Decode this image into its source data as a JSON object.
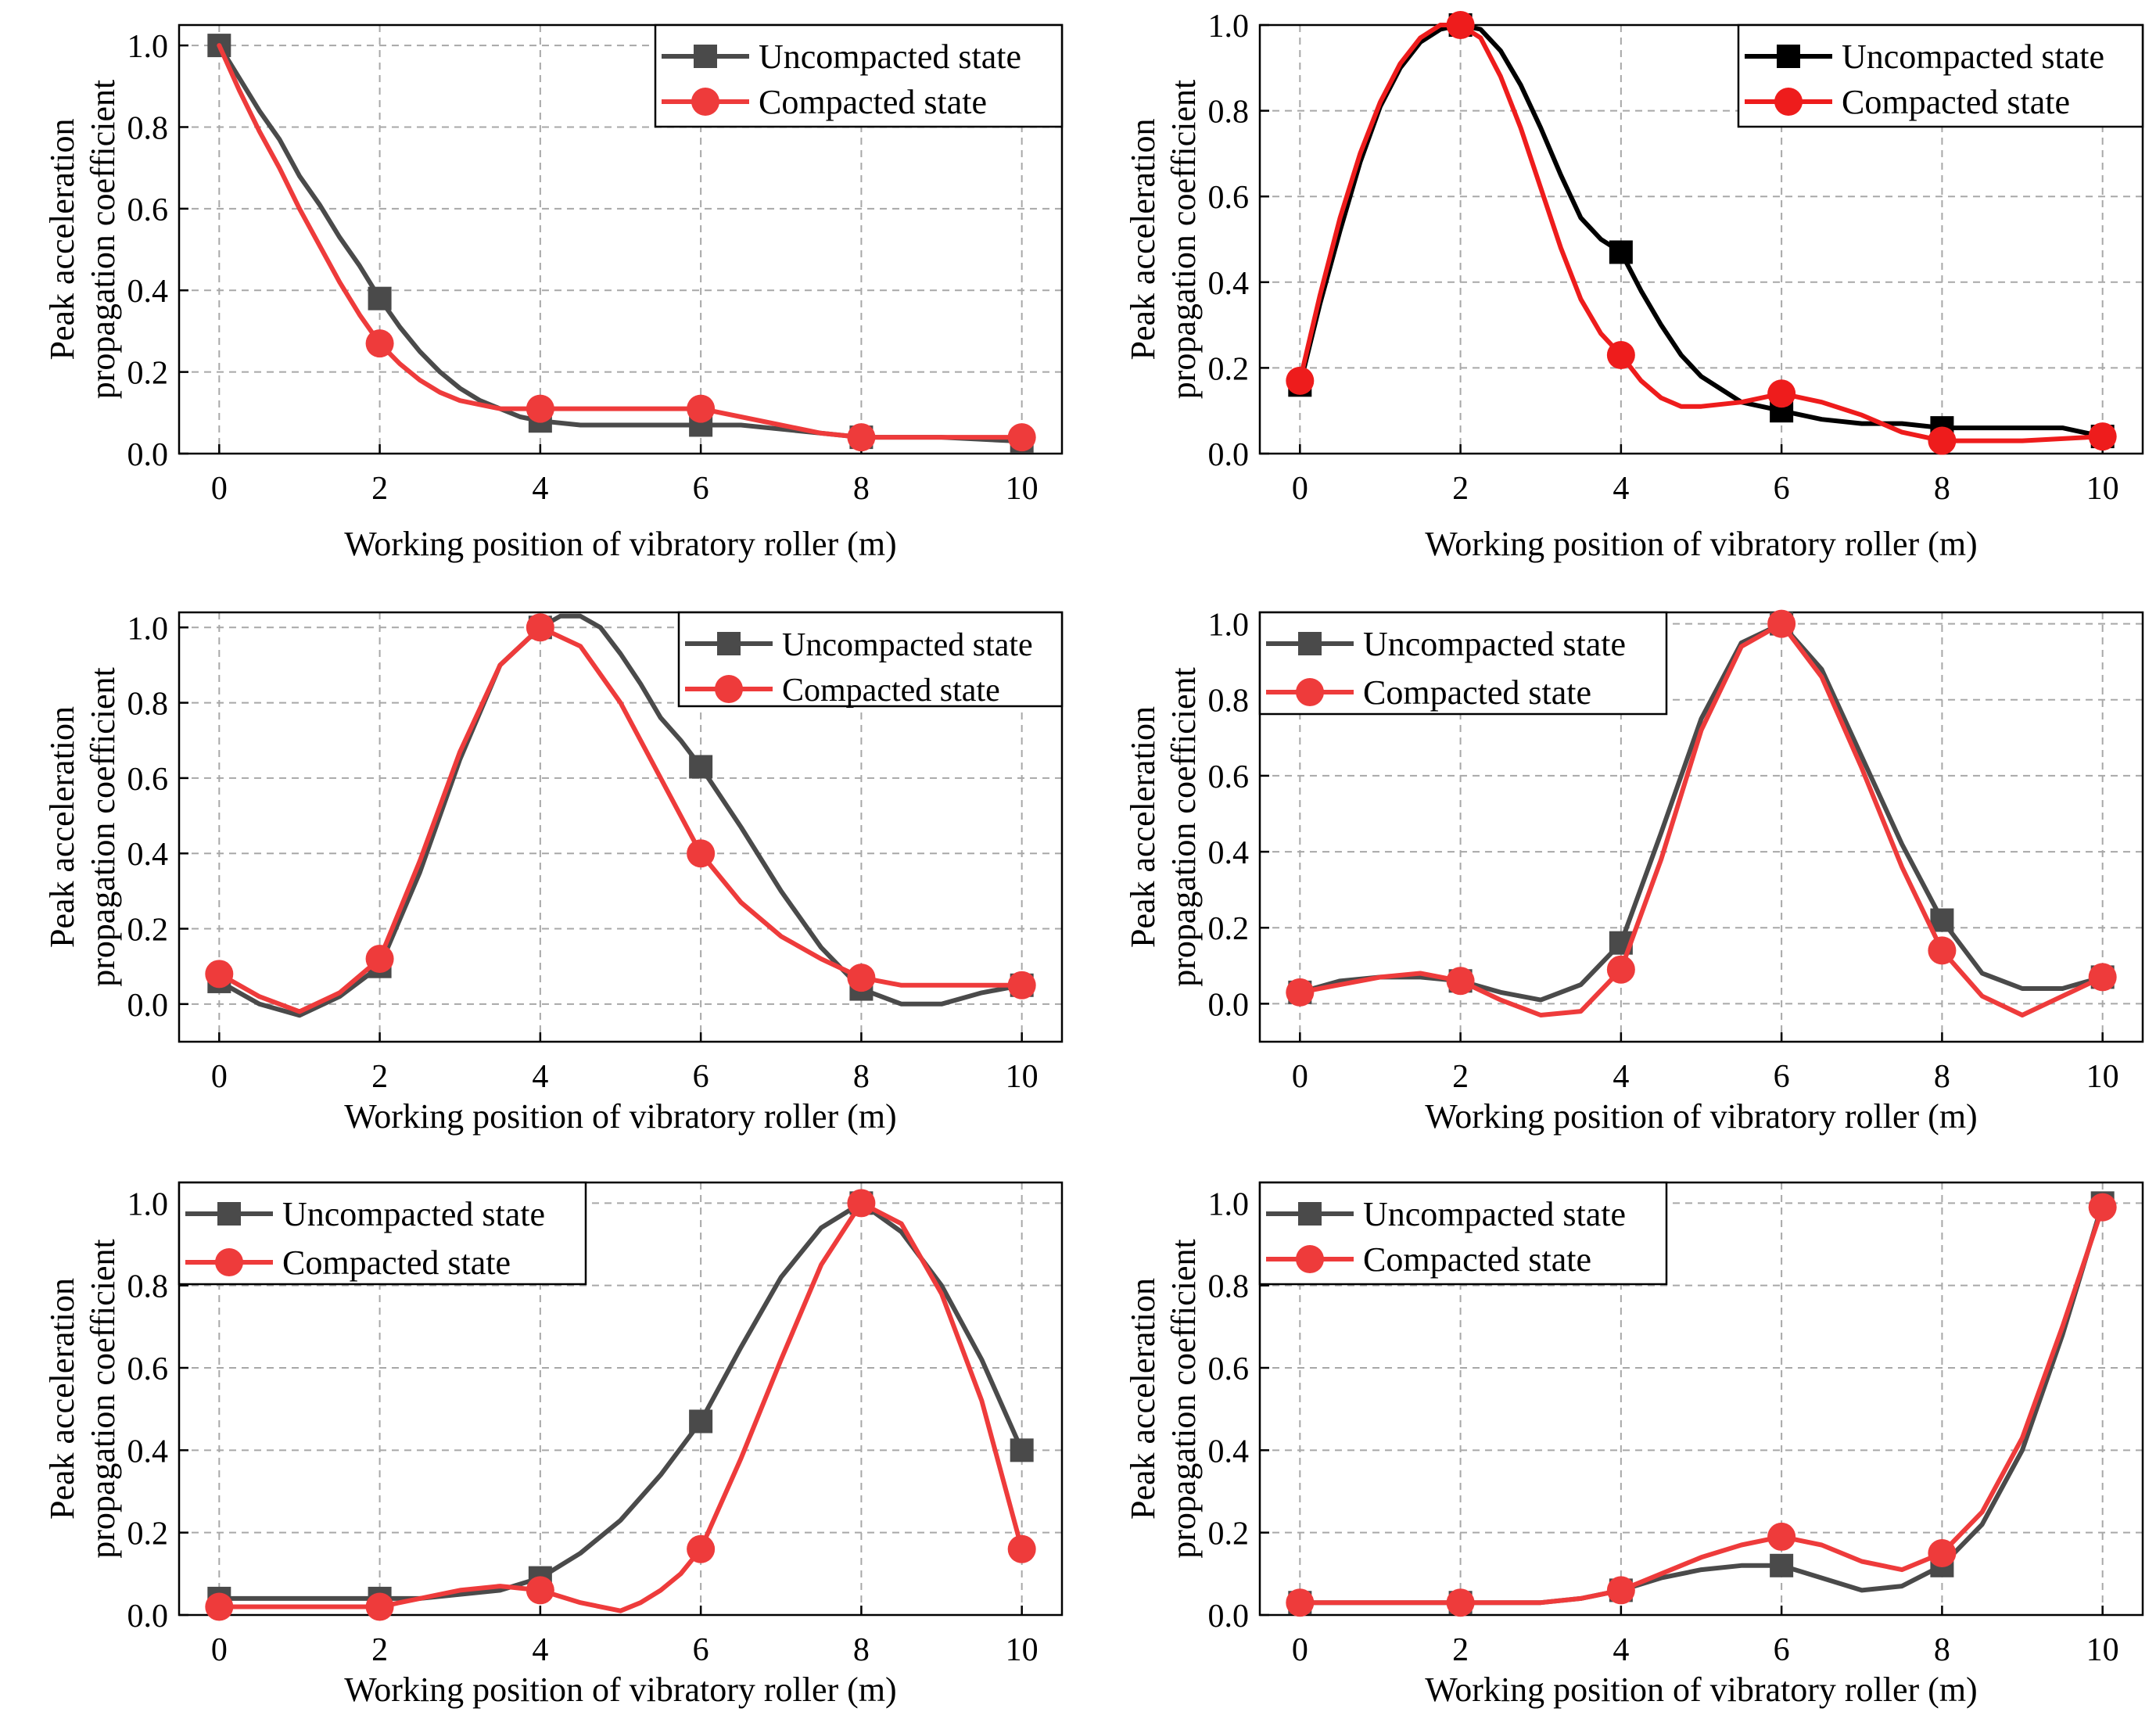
{
  "chart_data": [
    {
      "type": "line",
      "xlabel": "Working position of vibratory roller (m)",
      "ylabel": [
        "Peak acceleration",
        "propagation coefficient"
      ],
      "xlim": [
        -0.5,
        10.5
      ],
      "ylim": [
        0,
        1.05
      ],
      "xticks": [
        "0",
        "2",
        "4",
        "6",
        "8",
        "10"
      ],
      "yticks": [
        "0.0",
        "0.2",
        "0.4",
        "0.6",
        "0.8",
        "1.0"
      ],
      "grid": true,
      "legend_position": "top-right",
      "series": [
        {
          "name": "Uncompacted state",
          "color": "#4a4a4a",
          "marker": "square",
          "x": [
            0,
            0.25,
            0.5,
            0.75,
            1,
            1.25,
            1.5,
            1.75,
            2,
            2.25,
            2.5,
            2.75,
            3,
            3.25,
            3.5,
            3.75,
            4,
            4.5,
            5,
            5.5,
            6,
            6.5,
            7,
            7.5,
            8,
            9,
            10
          ],
          "y": [
            1.0,
            0.92,
            0.84,
            0.77,
            0.68,
            0.61,
            0.53,
            0.46,
            0.38,
            0.31,
            0.25,
            0.2,
            0.16,
            0.13,
            0.11,
            0.09,
            0.08,
            0.07,
            0.07,
            0.07,
            0.07,
            0.07,
            0.06,
            0.05,
            0.04,
            0.04,
            0.03
          ],
          "markers_x": [
            0,
            2,
            4,
            6,
            8,
            10
          ]
        },
        {
          "name": "Compacted state",
          "color": "#ee3b3b",
          "marker": "circle",
          "x": [
            0,
            0.25,
            0.5,
            0.75,
            1,
            1.25,
            1.5,
            1.75,
            2,
            2.25,
            2.5,
            2.75,
            3,
            3.25,
            3.5,
            4,
            5,
            6,
            6.5,
            7,
            7.5,
            8,
            9,
            10
          ],
          "y": [
            1.0,
            0.89,
            0.79,
            0.7,
            0.6,
            0.51,
            0.42,
            0.34,
            0.27,
            0.22,
            0.18,
            0.15,
            0.13,
            0.12,
            0.11,
            0.11,
            0.11,
            0.11,
            0.09,
            0.07,
            0.05,
            0.04,
            0.04,
            0.04
          ],
          "markers_x": [
            2,
            4,
            6,
            8,
            10
          ]
        }
      ]
    },
    {
      "type": "line",
      "xlabel": "Working position of vibratory roller (m)",
      "ylabel": [
        "Peak acceleration",
        "propagation coefficient"
      ],
      "xlim": [
        -0.5,
        10.5
      ],
      "ylim": [
        0,
        1.0
      ],
      "xticks": [
        "0",
        "2",
        "4",
        "6",
        "8",
        "10"
      ],
      "yticks": [
        "0.0",
        "0.2",
        "0.4",
        "0.6",
        "0.8",
        "1.0"
      ],
      "grid": true,
      "legend_position": "top-right",
      "series": [
        {
          "name": "Uncompacted state",
          "color": "#000000",
          "marker": "square",
          "x": [
            0,
            0.25,
            0.5,
            0.75,
            1,
            1.25,
            1.5,
            1.75,
            2,
            2.25,
            2.5,
            2.75,
            3,
            3.25,
            3.5,
            3.75,
            4,
            4.25,
            4.5,
            4.75,
            5,
            5.25,
            5.5,
            5.75,
            6,
            6.5,
            7,
            7.5,
            8,
            9,
            9.5,
            10
          ],
          "y": [
            0.16,
            0.35,
            0.52,
            0.68,
            0.81,
            0.9,
            0.96,
            0.99,
            1.0,
            0.99,
            0.94,
            0.86,
            0.76,
            0.65,
            0.55,
            0.5,
            0.47,
            0.38,
            0.3,
            0.23,
            0.18,
            0.15,
            0.12,
            0.11,
            0.1,
            0.08,
            0.07,
            0.07,
            0.06,
            0.06,
            0.06,
            0.04
          ],
          "markers_x": [
            0,
            2,
            4,
            6,
            8,
            10
          ]
        },
        {
          "name": "Compacted state",
          "color": "#ee1c1c",
          "marker": "circle",
          "x": [
            0,
            0.25,
            0.5,
            0.75,
            1,
            1.25,
            1.5,
            1.75,
            2,
            2.25,
            2.5,
            2.75,
            3,
            3.25,
            3.5,
            3.75,
            4,
            4.25,
            4.5,
            4.75,
            5,
            5.5,
            6,
            6.5,
            7,
            7.5,
            8,
            9,
            10
          ],
          "y": [
            0.17,
            0.37,
            0.55,
            0.7,
            0.82,
            0.91,
            0.97,
            1.0,
            1.0,
            0.97,
            0.88,
            0.76,
            0.62,
            0.48,
            0.36,
            0.28,
            0.23,
            0.17,
            0.13,
            0.11,
            0.11,
            0.12,
            0.14,
            0.12,
            0.09,
            0.05,
            0.03,
            0.03,
            0.04
          ],
          "markers_x": [
            0,
            2,
            4,
            6,
            8,
            10
          ]
        }
      ]
    },
    {
      "type": "line",
      "xlabel": "Working position of vibratory roller (m)",
      "ylabel": [
        "Peak acceleration",
        "propagation coefficient"
      ],
      "xlim": [
        -0.5,
        10.5
      ],
      "ylim": [
        -0.1,
        1.04
      ],
      "xticks": [
        "0",
        "2",
        "4",
        "6",
        "8",
        "10"
      ],
      "yticks": [
        "0.0",
        "0.2",
        "0.4",
        "0.6",
        "0.8",
        "1.0"
      ],
      "grid": true,
      "legend_position": "top-right",
      "series": [
        {
          "name": "Uncompacted state",
          "color": "#4a4a4a",
          "marker": "square",
          "x": [
            0,
            0.5,
            1,
            1.5,
            2,
            2.5,
            3,
            3.5,
            4,
            4.25,
            4.5,
            4.75,
            5,
            5.25,
            5.5,
            5.75,
            6,
            6.5,
            7,
            7.5,
            8,
            8.5,
            9,
            9.5,
            10
          ],
          "y": [
            0.06,
            0.0,
            -0.03,
            0.02,
            0.1,
            0.35,
            0.65,
            0.9,
            1.0,
            1.03,
            1.03,
            1.0,
            0.93,
            0.85,
            0.76,
            0.7,
            0.63,
            0.47,
            0.3,
            0.15,
            0.04,
            0.0,
            0.0,
            0.03,
            0.05
          ],
          "markers_x": [
            0,
            2,
            4,
            6,
            8,
            10
          ]
        },
        {
          "name": "Compacted state",
          "color": "#ee3b3b",
          "marker": "circle",
          "x": [
            0,
            0.5,
            1,
            1.5,
            2,
            2.5,
            3,
            3.5,
            4,
            4.5,
            5,
            5.5,
            6,
            6.5,
            7,
            7.5,
            8,
            8.5,
            9,
            9.5,
            10
          ],
          "y": [
            0.08,
            0.02,
            -0.02,
            0.03,
            0.12,
            0.38,
            0.67,
            0.9,
            1.0,
            0.95,
            0.8,
            0.6,
            0.4,
            0.27,
            0.18,
            0.12,
            0.07,
            0.05,
            0.05,
            0.05,
            0.05
          ],
          "markers_x": [
            0,
            2,
            4,
            6,
            8,
            10
          ]
        }
      ]
    },
    {
      "type": "line",
      "xlabel": "Working position of vibratory roller (m)",
      "ylabel": [
        "Peak acceleration",
        "propagation coefficient"
      ],
      "xlim": [
        -0.5,
        10.5
      ],
      "ylim": [
        -0.1,
        1.03
      ],
      "xticks": [
        "0",
        "2",
        "4",
        "6",
        "8",
        "10"
      ],
      "yticks": [
        "0.0",
        "0.2",
        "0.4",
        "0.6",
        "0.8",
        "1.0"
      ],
      "grid": true,
      "legend_position": "top-left",
      "series": [
        {
          "name": "Uncompacted state",
          "color": "#4a4a4a",
          "marker": "square",
          "x": [
            0,
            0.5,
            1,
            1.5,
            2,
            2.5,
            3,
            3.5,
            4,
            4.5,
            5,
            5.5,
            6,
            6.5,
            7,
            7.5,
            8,
            8.5,
            9,
            9.5,
            10
          ],
          "y": [
            0.03,
            0.06,
            0.07,
            0.07,
            0.06,
            0.03,
            0.01,
            0.05,
            0.16,
            0.45,
            0.75,
            0.95,
            1.0,
            0.88,
            0.65,
            0.42,
            0.22,
            0.08,
            0.04,
            0.04,
            0.07
          ],
          "markers_x": [
            0,
            2,
            4,
            6,
            8,
            10
          ]
        },
        {
          "name": "Compacted state",
          "color": "#ee3b3b",
          "marker": "circle",
          "x": [
            0,
            0.5,
            1,
            1.5,
            2,
            2.5,
            3,
            3.5,
            4,
            4.5,
            5,
            5.5,
            6,
            6.5,
            7,
            7.5,
            8,
            8.5,
            9,
            9.5,
            10
          ],
          "y": [
            0.03,
            0.05,
            0.07,
            0.08,
            0.06,
            0.01,
            -0.03,
            -0.02,
            0.09,
            0.38,
            0.72,
            0.94,
            1.0,
            0.86,
            0.62,
            0.36,
            0.14,
            0.02,
            -0.03,
            0.02,
            0.07
          ],
          "markers_x": [
            0,
            2,
            4,
            6,
            8,
            10
          ]
        }
      ]
    },
    {
      "type": "line",
      "xlabel": "Working position of vibratory roller (m)",
      "ylabel": [
        "Peak acceleration",
        "propagation coefficient"
      ],
      "xlim": [
        -0.5,
        10.5
      ],
      "ylim": [
        0,
        1.05
      ],
      "xticks": [
        "0",
        "2",
        "4",
        "6",
        "8",
        "10"
      ],
      "yticks": [
        "0.0",
        "0.2",
        "0.4",
        "0.6",
        "0.8",
        "1.0"
      ],
      "grid": true,
      "legend_position": "top-left",
      "series": [
        {
          "name": "Uncompacted state",
          "color": "#4a4a4a",
          "marker": "square",
          "x": [
            0,
            1,
            2,
            2.5,
            3,
            3.5,
            4,
            4.5,
            5,
            5.5,
            6,
            6.5,
            7,
            7.5,
            8,
            8.5,
            9,
            9.5,
            10
          ],
          "y": [
            0.04,
            0.04,
            0.04,
            0.04,
            0.05,
            0.06,
            0.09,
            0.15,
            0.23,
            0.34,
            0.47,
            0.65,
            0.82,
            0.94,
            1.0,
            0.93,
            0.8,
            0.62,
            0.4
          ],
          "markers_x": [
            0,
            2,
            4,
            6,
            8,
            10
          ]
        },
        {
          "name": "Compacted state",
          "color": "#ee3b3b",
          "marker": "circle",
          "x": [
            0,
            0.5,
            1,
            1.5,
            2,
            2.5,
            3,
            3.5,
            4,
            4.5,
            5,
            5.25,
            5.5,
            5.75,
            6,
            6.5,
            7,
            7.5,
            8,
            8.5,
            9,
            9.5,
            10
          ],
          "y": [
            0.02,
            0.02,
            0.02,
            0.02,
            0.02,
            0.04,
            0.06,
            0.07,
            0.06,
            0.03,
            0.01,
            0.03,
            0.06,
            0.1,
            0.16,
            0.38,
            0.62,
            0.85,
            1.0,
            0.95,
            0.78,
            0.52,
            0.16
          ],
          "markers_x": [
            0,
            2,
            4,
            6,
            8,
            10
          ]
        }
      ]
    },
    {
      "type": "line",
      "xlabel": "Working position of vibratory roller (m)",
      "ylabel": [
        "Peak acceleration",
        "propagation coefficient"
      ],
      "xlim": [
        -0.5,
        10.5
      ],
      "ylim": [
        0,
        1.05
      ],
      "xticks": [
        "0",
        "2",
        "4",
        "6",
        "8",
        "10"
      ],
      "yticks": [
        "0.0",
        "0.2",
        "0.4",
        "0.6",
        "0.8",
        "1.0"
      ],
      "grid": true,
      "legend_position": "top-left",
      "series": [
        {
          "name": "Uncompacted state",
          "color": "#4a4a4a",
          "marker": "square",
          "x": [
            0,
            1,
            2,
            2.5,
            3,
            3.5,
            4,
            4.5,
            5,
            5.5,
            6,
            6.5,
            7,
            7.5,
            8,
            8.5,
            9,
            9.5,
            10
          ],
          "y": [
            0.03,
            0.03,
            0.03,
            0.03,
            0.03,
            0.04,
            0.06,
            0.09,
            0.11,
            0.12,
            0.12,
            0.09,
            0.06,
            0.07,
            0.12,
            0.22,
            0.4,
            0.68,
            1.0
          ],
          "markers_x": [
            0,
            2,
            4,
            6,
            8,
            10
          ]
        },
        {
          "name": "Compacted state",
          "color": "#ee3b3b",
          "marker": "circle",
          "x": [
            0,
            1,
            2,
            2.5,
            3,
            3.5,
            4,
            4.5,
            5,
            5.5,
            6,
            6.5,
            7,
            7.5,
            8,
            8.5,
            9,
            9.5,
            10
          ],
          "y": [
            0.03,
            0.03,
            0.03,
            0.03,
            0.03,
            0.04,
            0.06,
            0.1,
            0.14,
            0.17,
            0.19,
            0.17,
            0.13,
            0.11,
            0.15,
            0.25,
            0.43,
            0.7,
            0.99
          ],
          "markers_x": [
            0,
            2,
            4,
            6,
            8,
            10
          ]
        }
      ]
    }
  ]
}
